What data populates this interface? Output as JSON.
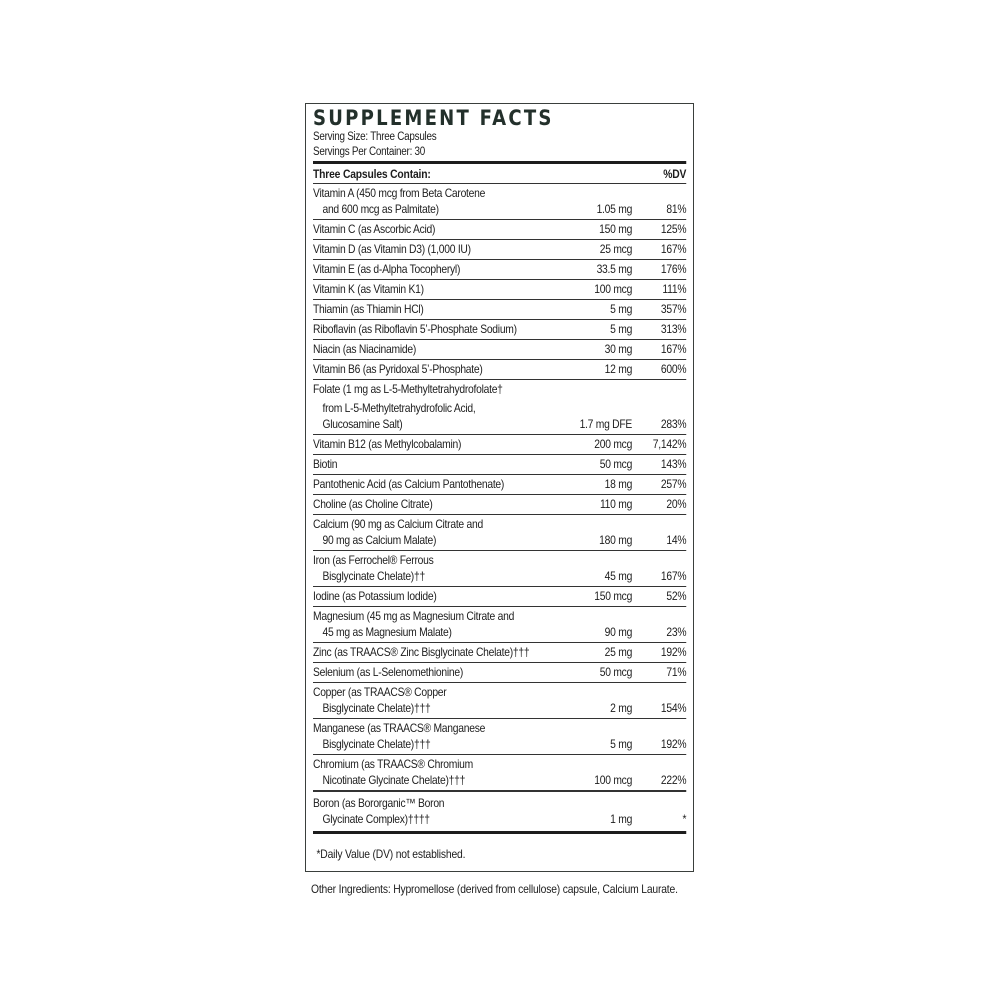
{
  "title": "SUPPLEMENT FACTS",
  "serving_size": "Serving Size: Three Capsules",
  "servings_per_container": "Servings Per Container: 30",
  "header": {
    "contains": "Three Capsules Contain:",
    "dv": "%DV"
  },
  "rows": [
    {
      "name": [
        "Vitamin A (450 mcg from Beta Carotene",
        "and 600 mcg as Palmitate)"
      ],
      "amount": "1.05 mg",
      "dv": "81%"
    },
    {
      "name": [
        "Vitamin C (as Ascorbic Acid)"
      ],
      "amount": "150 mg",
      "dv": "125%"
    },
    {
      "name": [
        "Vitamin D (as Vitamin D3) (1,000 IU)"
      ],
      "amount": "25 mcg",
      "dv": "167%"
    },
    {
      "name": [
        "Vitamin E (as d-Alpha Tocopheryl)"
      ],
      "amount": "33.5 mg",
      "dv": "176%"
    },
    {
      "name": [
        "Vitamin K (as Vitamin K1)"
      ],
      "amount": "100 mcg",
      "dv": "111%"
    },
    {
      "name": [
        "Thiamin (as Thiamin HCl)"
      ],
      "amount": "5 mg",
      "dv": "357%"
    },
    {
      "name": [
        "Riboflavin (as Riboflavin 5’-Phosphate Sodium)"
      ],
      "amount": "5 mg",
      "dv": "313%"
    },
    {
      "name": [
        "Niacin (as Niacinamide)"
      ],
      "amount": "30 mg",
      "dv": "167%"
    },
    {
      "name": [
        "Vitamin B6 (as Pyridoxal 5’-Phosphate)"
      ],
      "amount": "12 mg",
      "dv": "600%"
    },
    {
      "name": [
        "Folate (1 mg as L-5-Methyltetrahydrofolate†",
        "from L-5-Methyltetrahydrofolic Acid,",
        "Glucosamine Salt)"
      ],
      "amount": "1.7 mg DFE",
      "dv": "283%"
    },
    {
      "name": [
        "Vitamin B12 (as Methylcobalamin)"
      ],
      "amount": "200 mcg",
      "dv": "7,142%"
    },
    {
      "name": [
        "Biotin"
      ],
      "amount": "50 mcg",
      "dv": "143%"
    },
    {
      "name": [
        "Pantothenic Acid (as Calcium Pantothenate)"
      ],
      "amount": "18 mg",
      "dv": "257%"
    },
    {
      "name": [
        "Choline (as Choline Citrate)"
      ],
      "amount": "110 mg",
      "dv": "20%"
    },
    {
      "name": [
        "Calcium (90 mg as Calcium Citrate and",
        "90 mg as Calcium Malate)"
      ],
      "amount": "180 mg",
      "dv": "14%"
    },
    {
      "name": [
        "Iron (as Ferrochel® Ferrous",
        "Bisglycinate Chelate)††"
      ],
      "amount": "45 mg",
      "dv": "167%"
    },
    {
      "name": [
        "Iodine (as Potassium Iodide)"
      ],
      "amount": "150 mcg",
      "dv": "52%"
    },
    {
      "name": [
        "Magnesium (45 mg as Magnesium Citrate and",
        "45 mg as Magnesium Malate)"
      ],
      "amount": "90 mg",
      "dv": "23%"
    },
    {
      "name": [
        "Zinc (as TRAACS® Zinc Bisglycinate Chelate)†††"
      ],
      "amount": "25 mg",
      "dv": "192%"
    },
    {
      "name": [
        "Selenium (as L-Selenomethionine)"
      ],
      "amount": "50 mcg",
      "dv": "71%"
    },
    {
      "name": [
        "Copper (as TRAACS® Copper",
        "Bisglycinate Chelate)†††"
      ],
      "amount": "2 mg",
      "dv": "154%"
    },
    {
      "name": [
        "Manganese (as TRAACS® Manganese",
        "Bisglycinate Chelate)†††"
      ],
      "amount": "5 mg",
      "dv": "192%"
    },
    {
      "name": [
        "Chromium (as TRAACS® Chromium",
        "Nicotinate Glycinate Chelate)†††"
      ],
      "amount": "100 mcg",
      "dv": "222%"
    },
    {
      "name": [
        "Boron (as Bororganic™ Boron",
        "Glycinate Complex)††††"
      ],
      "amount": "1 mg",
      "dv": "*"
    }
  ],
  "footnote": "*Daily Value (DV) not established.",
  "other_ingredients": "Other Ingredients: Hypromellose (derived from cellulose) capsule, Calcium Laurate."
}
